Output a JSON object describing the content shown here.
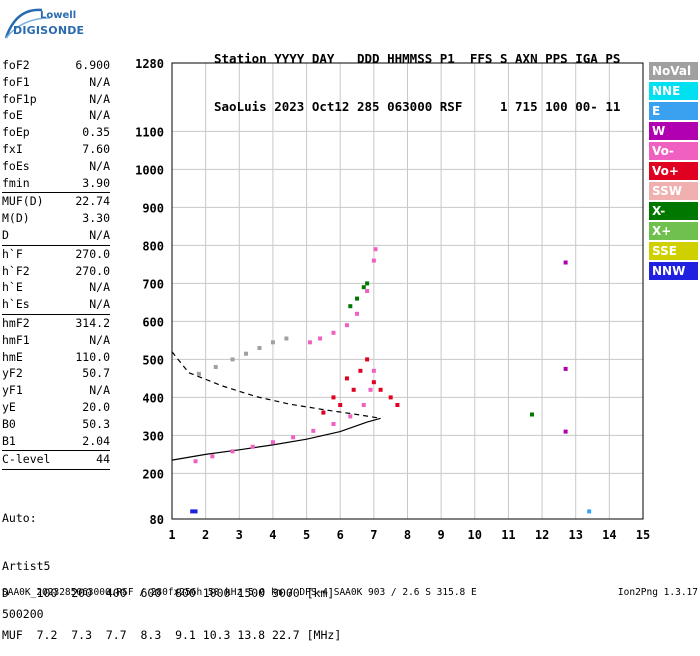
{
  "logo": {
    "line1": "Lowell",
    "line2": "DIGISONDE"
  },
  "header": {
    "line1": "Station YYYY DAY   DDD HHMMSS P1  FFS S AXN PPS IGA PS",
    "line2": "SaoLuis 2023 Oct12 285 063000 RSF     1 715 100 00- 11"
  },
  "params": {
    "group1": [
      {
        "key": "foF2",
        "value": "6.900"
      },
      {
        "key": "foF1",
        "value": "N/A"
      },
      {
        "key": "foF1p",
        "value": "N/A"
      },
      {
        "key": "foE",
        "value": "N/A"
      },
      {
        "key": "foEp",
        "value": "0.35"
      },
      {
        "key": "fxI",
        "value": "7.60"
      },
      {
        "key": "foEs",
        "value": "N/A"
      },
      {
        "key": "fmin",
        "value": "3.90"
      }
    ],
    "group2": [
      {
        "key": "MUF(D)",
        "value": "22.74"
      },
      {
        "key": "M(D)",
        "value": "3.30"
      },
      {
        "key": "D",
        "value": "N/A"
      }
    ],
    "group3": [
      {
        "key": "h`F",
        "value": "270.0"
      },
      {
        "key": "h`F2",
        "value": "270.0"
      },
      {
        "key": "h`E",
        "value": "N/A"
      },
      {
        "key": "h`Es",
        "value": "N/A"
      }
    ],
    "group4": [
      {
        "key": "hmF2",
        "value": "314.2"
      },
      {
        "key": "hmF1",
        "value": "N/A"
      },
      {
        "key": "hmE",
        "value": "110.0"
      },
      {
        "key": "yF2",
        "value": "50.7"
      },
      {
        "key": "yF1",
        "value": "N/A"
      },
      {
        "key": "yE",
        "value": "20.0"
      },
      {
        "key": "B0",
        "value": "50.3"
      },
      {
        "key": "B1",
        "value": "2.04"
      }
    ],
    "group5": [
      {
        "key": "C-level",
        "value": "44"
      }
    ]
  },
  "auto": {
    "line1": "Auto:",
    "line2": "Artist5",
    "line3": "500200"
  },
  "dmuf": {
    "line1": "D    100  200  400  600  800 1000 1500 3000 [km]",
    "line2": "MUF  7.2  7.3  7.7  8.3  9.1 10.3 13.8 22.7 [MHz]"
  },
  "footer": {
    "left": "SAA0K_2023285063000.RSF / 280fx256h 50 kHz 5.0 km / DPS-4 SAA0K 903 / 2.6 S 315.8 E",
    "right": "Ion2Png 1.3.17"
  },
  "legend": [
    {
      "label": "NoVal",
      "color": "#a0a0a0"
    },
    {
      "label": "NNE",
      "color": "#00e0f0"
    },
    {
      "label": "E",
      "color": "#3aa0f0"
    },
    {
      "label": "W",
      "color": "#b000b0"
    },
    {
      "label": "Vo-",
      "color": "#f060c0"
    },
    {
      "label": "Vo+",
      "color": "#e00020"
    },
    {
      "label": "SSW",
      "color": "#f0b0b0"
    },
    {
      "label": "X-",
      "color": "#007800"
    },
    {
      "label": "X+",
      "color": "#70c050"
    },
    {
      "label": "SSE",
      "color": "#d0d000"
    },
    {
      "label": "NNW",
      "color": "#2020e0"
    }
  ],
  "chart_data": {
    "type": "scatter",
    "xlabel": "",
    "ylabel": "",
    "xlim": [
      1,
      15
    ],
    "ylim": [
      80,
      1280
    ],
    "x_ticks": [
      1,
      2,
      3,
      4,
      5,
      6,
      7,
      8,
      9,
      10,
      11,
      12,
      13,
      14,
      15
    ],
    "y_ticks": [
      80,
      200,
      300,
      400,
      500,
      600,
      700,
      800,
      900,
      1000,
      1100,
      1280
    ],
    "grid": true,
    "curves": [
      {
        "name": "trace-low",
        "points": [
          [
            1,
            235
          ],
          [
            2,
            250
          ],
          [
            3,
            262
          ],
          [
            4,
            275
          ],
          [
            5,
            290
          ],
          [
            6,
            310
          ],
          [
            6.8,
            335
          ],
          [
            7.2,
            345
          ]
        ]
      },
      {
        "name": "trace-high",
        "points": [
          [
            1,
            520
          ],
          [
            1.5,
            465
          ],
          [
            2.5,
            430
          ],
          [
            3.5,
            402
          ],
          [
            4.5,
            382
          ],
          [
            5.5,
            368
          ],
          [
            6.5,
            355
          ],
          [
            7.2,
            345
          ]
        ]
      }
    ],
    "series": [
      {
        "name": "O-trace",
        "color": "#f060c0",
        "points": [
          [
            1.7,
            232
          ],
          [
            2.2,
            245
          ],
          [
            2.8,
            258
          ],
          [
            3.4,
            270
          ],
          [
            4.0,
            282
          ],
          [
            4.6,
            295
          ],
          [
            5.2,
            312
          ],
          [
            5.8,
            330
          ],
          [
            6.3,
            350
          ],
          [
            6.7,
            380
          ],
          [
            6.9,
            420
          ],
          [
            7.0,
            470
          ]
        ]
      },
      {
        "name": "X-trace",
        "color": "#007800",
        "points": [
          [
            6.3,
            640
          ],
          [
            6.5,
            660
          ],
          [
            6.7,
            690
          ],
          [
            6.8,
            700
          ]
        ]
      },
      {
        "name": "upper-O",
        "color": "#f060c0",
        "points": [
          [
            5.1,
            545
          ],
          [
            5.4,
            555
          ],
          [
            5.8,
            570
          ],
          [
            6.2,
            590
          ],
          [
            6.5,
            620
          ],
          [
            6.8,
            680
          ],
          [
            7.0,
            760
          ],
          [
            7.05,
            790
          ]
        ]
      },
      {
        "name": "second-hop",
        "color": "#a0a0a0",
        "points": [
          [
            1.8,
            462
          ],
          [
            2.3,
            480
          ],
          [
            2.8,
            500
          ],
          [
            3.2,
            515
          ],
          [
            3.6,
            530
          ],
          [
            4.0,
            545
          ],
          [
            4.4,
            555
          ]
        ]
      },
      {
        "name": "scattered",
        "color": "#e00020",
        "points": [
          [
            5.5,
            360
          ],
          [
            6.0,
            380
          ],
          [
            6.4,
            420
          ],
          [
            6.6,
            470
          ],
          [
            6.8,
            500
          ],
          [
            7.0,
            440
          ],
          [
            7.2,
            420
          ],
          [
            7.5,
            400
          ],
          [
            7.7,
            380
          ],
          [
            6.2,
            450
          ],
          [
            5.8,
            400
          ]
        ]
      },
      {
        "name": "isolated",
        "color": "#b000b0",
        "points": [
          [
            12.7,
            755
          ],
          [
            12.7,
            475
          ],
          [
            12.7,
            310
          ]
        ]
      },
      {
        "name": "isolated-x",
        "color": "#007800",
        "points": [
          [
            11.7,
            355
          ]
        ]
      },
      {
        "name": "nnw-low",
        "color": "#2020e0",
        "points": [
          [
            1.6,
            100
          ],
          [
            1.7,
            100
          ]
        ]
      },
      {
        "name": "e-low",
        "color": "#3aa0f0",
        "points": [
          [
            13.4,
            100
          ]
        ]
      }
    ]
  }
}
